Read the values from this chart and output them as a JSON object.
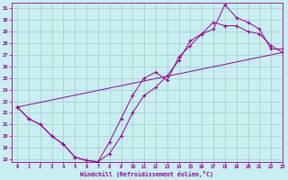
{
  "bg_color": "#c8eef0",
  "grid_color": "#a0ccc8",
  "line_color": "#990099",
  "xlim": [
    -0.5,
    23
  ],
  "ylim": [
    17.8,
    31.5
  ],
  "xticks": [
    0,
    1,
    2,
    3,
    4,
    5,
    6,
    7,
    8,
    9,
    10,
    11,
    12,
    13,
    14,
    15,
    16,
    17,
    18,
    19,
    20,
    21,
    22,
    23
  ],
  "yticks": [
    18,
    19,
    20,
    21,
    22,
    23,
    24,
    25,
    26,
    27,
    28,
    29,
    30,
    31
  ],
  "xlabel": "Windchill (Refroidissement éolien,°C)",
  "curve1_x": [
    0,
    1,
    2,
    3,
    4,
    5,
    6,
    7,
    8,
    9,
    10,
    11,
    12,
    13,
    14,
    15,
    16,
    17,
    18,
    19,
    20,
    21,
    22,
    23
  ],
  "curve1_y": [
    22.5,
    21.5,
    21.0,
    20.0,
    19.3,
    18.2,
    17.9,
    17.8,
    19.5,
    21.5,
    23.5,
    25.0,
    25.5,
    24.8,
    26.8,
    27.8,
    28.8,
    29.2,
    31.3,
    30.2,
    29.8,
    29.2,
    27.5,
    27.5
  ],
  "curve2_x": [
    0,
    1,
    2,
    3,
    4,
    5,
    6,
    7,
    8,
    9,
    10,
    11,
    12,
    13,
    14,
    15,
    16,
    17,
    18,
    19,
    20,
    21,
    22,
    23
  ],
  "curve2_y": [
    22.5,
    21.5,
    21.0,
    20.0,
    19.3,
    18.2,
    17.9,
    17.8,
    18.5,
    20.0,
    22.0,
    23.5,
    24.2,
    25.2,
    26.5,
    28.2,
    28.8,
    29.8,
    29.5,
    29.5,
    29.0,
    28.8,
    27.8,
    27.2
  ],
  "curve3_x": [
    0,
    23
  ],
  "curve3_y": [
    22.5,
    27.2
  ]
}
